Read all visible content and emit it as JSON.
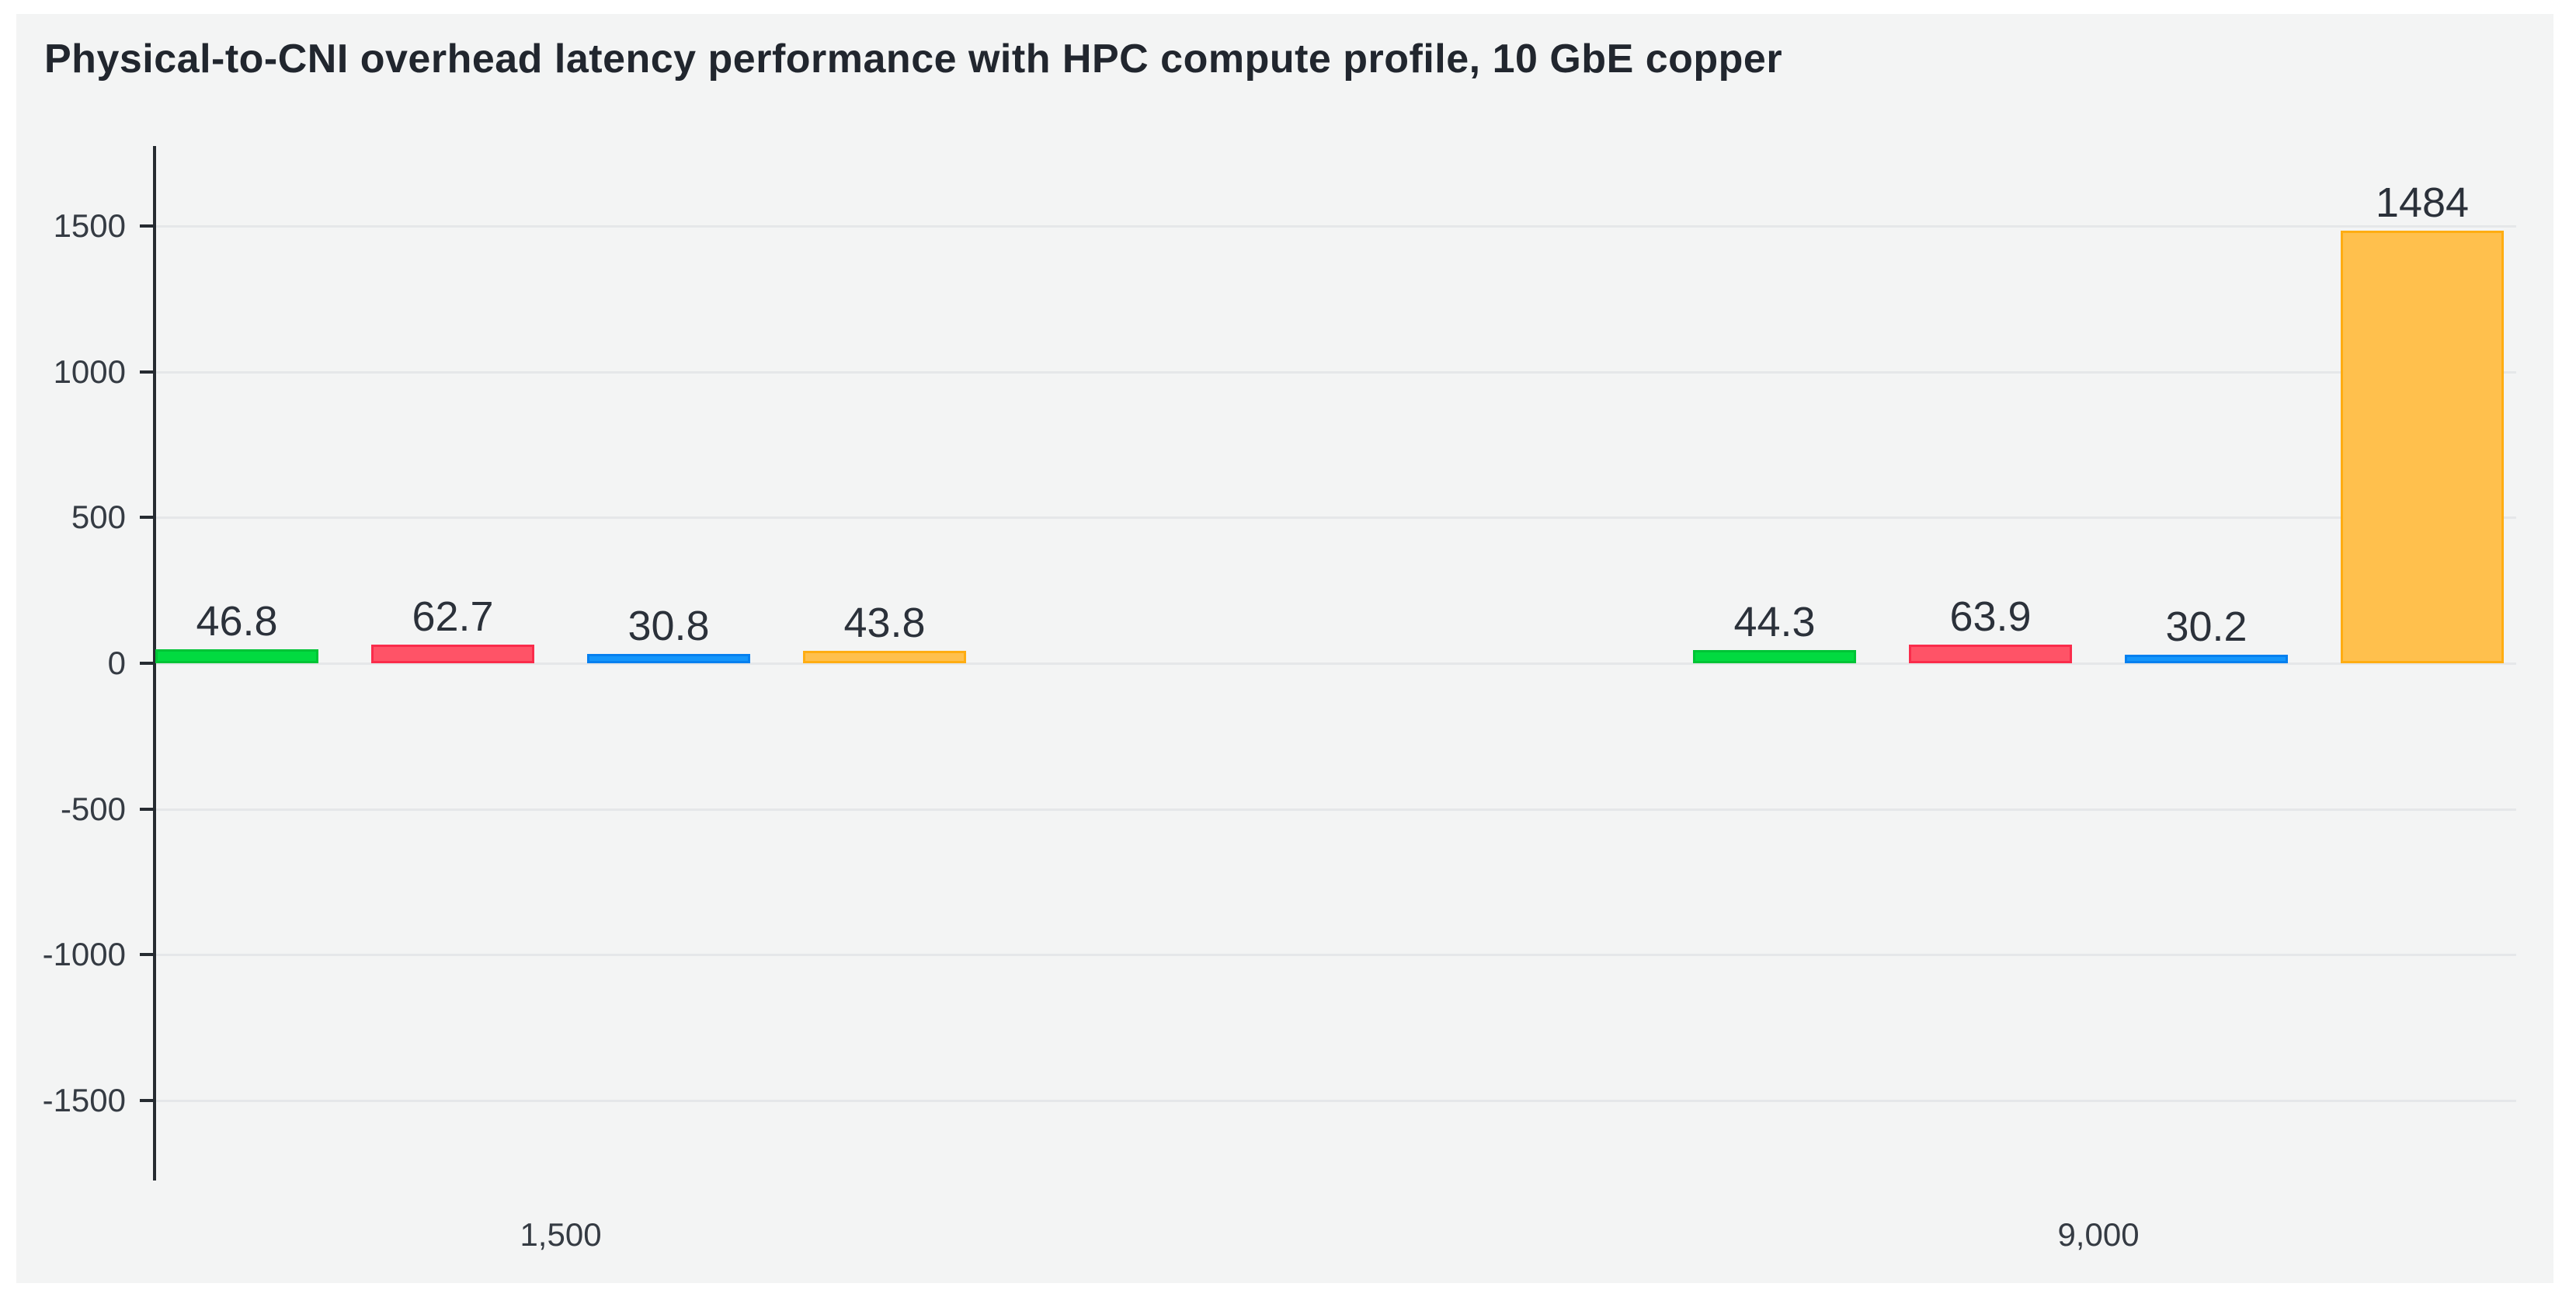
{
  "header": {
    "title": "Physical-to-CNI overhead latency performance with HPC compute profile, 10 GbE copper"
  },
  "colors": {
    "page_background": "#ffffff",
    "panel_background": "#f3f4f4",
    "grid": "#e5e7e9",
    "axis": "#262b31",
    "title_text": "#21262e",
    "tick_text": "#353b43",
    "value_text": "#2b313a"
  },
  "chart_data": {
    "type": "bar",
    "title": "Physical-to-CNI overhead latency performance with HPC compute profile, 10 GbE copper",
    "categories": [
      "1,500",
      "9,000"
    ],
    "series": [
      {
        "name": "series-green",
        "color": "#02da40",
        "border_color": "#00c436",
        "values": [
          46.8,
          44.3
        ],
        "labels": [
          "46.8",
          "44.3"
        ]
      },
      {
        "name": "series-red",
        "color": "#ff5367",
        "border_color": "#fa2c4b",
        "values": [
          62.7,
          63.9
        ],
        "labels": [
          "62.7",
          "63.9"
        ]
      },
      {
        "name": "series-blue",
        "color": "#1496fb",
        "border_color": "#0680ef",
        "values": [
          30.8,
          30.2
        ],
        "labels": [
          "30.8",
          "30.2"
        ]
      },
      {
        "name": "series-orange",
        "color": "#ffc04d",
        "border_color": "#ffad12",
        "values": [
          43.8,
          1484
        ],
        "labels": [
          "43.8",
          "1484"
        ]
      }
    ],
    "y_ticks": [
      1500,
      1000,
      500,
      0,
      -500,
      -1000,
      -1500
    ],
    "y_tick_labels": [
      "1500",
      "1000",
      "500",
      "0",
      "-500",
      "-1000",
      "-1500"
    ],
    "ylim": [
      -1770,
      1770
    ],
    "xlabel": "",
    "ylabel": "",
    "grid": "horizontal-only",
    "legend": "none",
    "value_labels_shown": true
  }
}
